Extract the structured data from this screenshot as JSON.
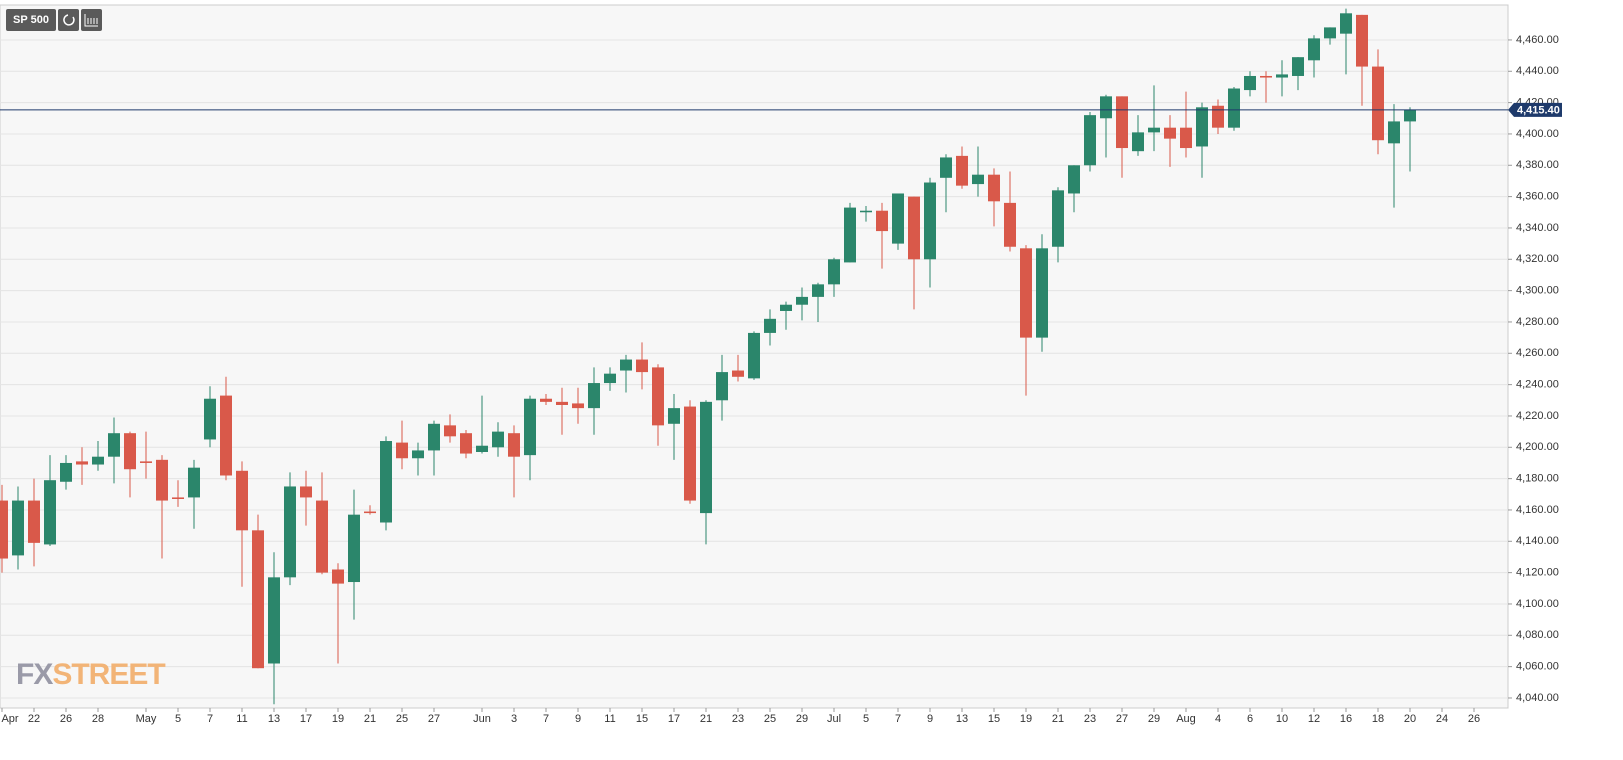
{
  "chart_data": {
    "type": "candlestick",
    "symbol": "SP 500",
    "watermark": [
      "FX",
      "STREET"
    ],
    "categories": [
      "Apr",
      null,
      "22",
      null,
      "26",
      null,
      "28",
      null,
      null,
      "May",
      null,
      "5",
      null,
      "7",
      null,
      "11",
      null,
      "13",
      null,
      "17",
      null,
      "19",
      null,
      "21",
      null,
      "25",
      null,
      "27",
      null,
      null,
      "Jun",
      null,
      "3",
      null,
      "7",
      null,
      "9",
      null,
      "11",
      null,
      "15",
      null,
      "17",
      null,
      "21",
      null,
      "23",
      null,
      "25",
      null,
      "29",
      null,
      "Jul",
      null,
      "5",
      null,
      "7",
      null,
      "9",
      null,
      "13",
      null,
      "15",
      null,
      "19",
      null,
      "21",
      null,
      "23",
      null,
      "27",
      null,
      "29",
      null,
      "Aug",
      null,
      "4",
      null,
      "6",
      null,
      "10",
      null,
      "12",
      null,
      "16",
      null,
      "18",
      null,
      "20",
      null,
      "24",
      null,
      "26",
      null
    ],
    "open": [
      4166,
      4131,
      4166,
      4138,
      4178,
      4191,
      4189,
      4194,
      4209,
      4191,
      4192,
      4168,
      4168,
      4205,
      4233,
      4185,
      4147,
      4062,
      4117,
      4175,
      4166,
      4122,
      4114,
      4159,
      4152,
      4203,
      4193,
      4198,
      4214,
      4209,
      4197,
      4200,
      4209,
      4195,
      4231,
      4229,
      4228,
      4225,
      4241,
      4249,
      4256,
      4251,
      4215,
      4226,
      4158,
      4230,
      4249,
      4244,
      4273,
      4287,
      4291,
      4296,
      4304,
      4318,
      4350,
      4351,
      4330,
      4360,
      4320,
      4372,
      4386,
      4368,
      4374,
      4356,
      4327,
      4270,
      4328,
      4362,
      4380,
      4410,
      4424,
      4389,
      4401,
      4404,
      4404,
      4392,
      4418,
      4404,
      4428,
      4437,
      4436,
      4437,
      4447,
      4461,
      4464,
      4476,
      4443,
      4394,
      4408,
      null,
      null,
      null,
      null,
      null
    ],
    "high": [
      4176,
      4175,
      4180,
      4195,
      4195,
      4200,
      4204,
      4219,
      4210,
      4210,
      4195,
      4179,
      4192,
      4239,
      4245,
      4191,
      4157,
      4133,
      4184,
      4185,
      4184,
      4126,
      4173,
      4163,
      4207,
      4217,
      4203,
      4217,
      4221,
      4211,
      4233,
      4216,
      4214,
      4233,
      4234,
      4238,
      4238,
      4251,
      4251,
      4259,
      4267,
      4253,
      4234,
      4230,
      4230,
      4259,
      4259,
      4274,
      4288,
      4293,
      4302,
      4305,
      4321,
      4356,
      4354,
      4356,
      4362,
      4360,
      4372,
      4387,
      4392,
      4392,
      4378,
      4376,
      4329,
      4336,
      4366,
      4380,
      4414,
      4425,
      4424,
      4412,
      4431,
      4412,
      4427,
      4420,
      4422,
      4430,
      4440,
      4440,
      4447,
      4449,
      4463,
      4468,
      4480,
      4476,
      4454,
      4419,
      4417,
      null,
      null,
      null,
      null,
      null
    ],
    "low": [
      4120,
      4122,
      4124,
      4137,
      4173,
      4176,
      4185,
      4177,
      4168,
      4180,
      4129,
      4162,
      4148,
      4200,
      4179,
      4111,
      4059,
      4036,
      4112,
      4150,
      4119,
      4062,
      4090,
      4157,
      4147,
      4186,
      4182,
      4182,
      4203,
      4193,
      4196,
      4194,
      4168,
      4179,
      4227,
      4208,
      4215,
      4208,
      4236,
      4235,
      4237,
      4201,
      4192,
      4164,
      4138,
      4217,
      4242,
      4243,
      4265,
      4275,
      4281,
      4280,
      4296,
      4318,
      4344,
      4314,
      4326,
      4288,
      4302,
      4350,
      4365,
      4360,
      4341,
      4325,
      4233,
      4261,
      4318,
      4350,
      4376,
      4385,
      4372,
      4386,
      4389,
      4379,
      4385,
      4372,
      4400,
      4402,
      4424,
      4420,
      4424,
      4428,
      4436,
      4457,
      4438,
      4418,
      4387,
      4353,
      4376,
      null,
      null,
      null,
      null,
      null
    ],
    "close": [
      4129,
      4166,
      4139,
      4179,
      4190,
      4189,
      4194,
      4209,
      4186,
      4190,
      4166,
      4167,
      4187,
      4231,
      4182,
      4147,
      4059,
      4117,
      4175,
      4168,
      4120,
      4113,
      4157,
      4158,
      4204,
      4193,
      4198,
      4215,
      4207,
      4196,
      4201,
      4210,
      4194,
      4231,
      4229,
      4227,
      4225,
      4241,
      4247,
      4256,
      4248,
      4214,
      4225,
      4166,
      4229,
      4248,
      4245,
      4273,
      4282,
      4291,
      4296,
      4304,
      4320,
      4353,
      4351,
      4338,
      4362,
      4320,
      4369,
      4385,
      4367,
      4374,
      4357,
      4328,
      4270,
      4327,
      4364,
      4380,
      4412,
      4424,
      4391,
      4401,
      4404,
      4397,
      4391,
      4417,
      4404,
      4429,
      4437,
      4436,
      4438,
      4449,
      4461,
      4468,
      4477,
      4443,
      4396,
      4408,
      4415.4,
      null,
      null,
      null,
      null,
      null
    ],
    "up_color": "#2b866b",
    "down_color": "#d9594a",
    "last_price": {
      "value": 4415.4,
      "label": "4,415.40"
    },
    "last_price_color": "#1e3a6b",
    "ylim": [
      4033.6,
      4482.3
    ],
    "yticks": [
      {
        "value": 4040,
        "label": "4,040.00"
      },
      {
        "value": 4060,
        "label": "4,060.00"
      },
      {
        "value": 4080,
        "label": "4,080.00"
      },
      {
        "value": 4100,
        "label": "4,100.00"
      },
      {
        "value": 4120,
        "label": "4,120.00"
      },
      {
        "value": 4140,
        "label": "4,140.00"
      },
      {
        "value": 4160,
        "label": "4,160.00"
      },
      {
        "value": 4180,
        "label": "4,180.00"
      },
      {
        "value": 4200,
        "label": "4,200.00"
      },
      {
        "value": 4220,
        "label": "4,220.00"
      },
      {
        "value": 4240,
        "label": "4,240.00"
      },
      {
        "value": 4260,
        "label": "4,260.00"
      },
      {
        "value": 4280,
        "label": "4,280.00"
      },
      {
        "value": 4300,
        "label": "4,300.00"
      },
      {
        "value": 4320,
        "label": "4,320.00"
      },
      {
        "value": 4340,
        "label": "4,340.00"
      },
      {
        "value": 4360,
        "label": "4,360.00"
      },
      {
        "value": 4380,
        "label": "4,380.00"
      },
      {
        "value": 4400,
        "label": "4,400.00"
      },
      {
        "value": 4420,
        "label": "4,420.00"
      },
      {
        "value": 4440,
        "label": "4,440.00"
      },
      {
        "value": 4460,
        "label": "4,460.00"
      }
    ],
    "grid": true
  }
}
